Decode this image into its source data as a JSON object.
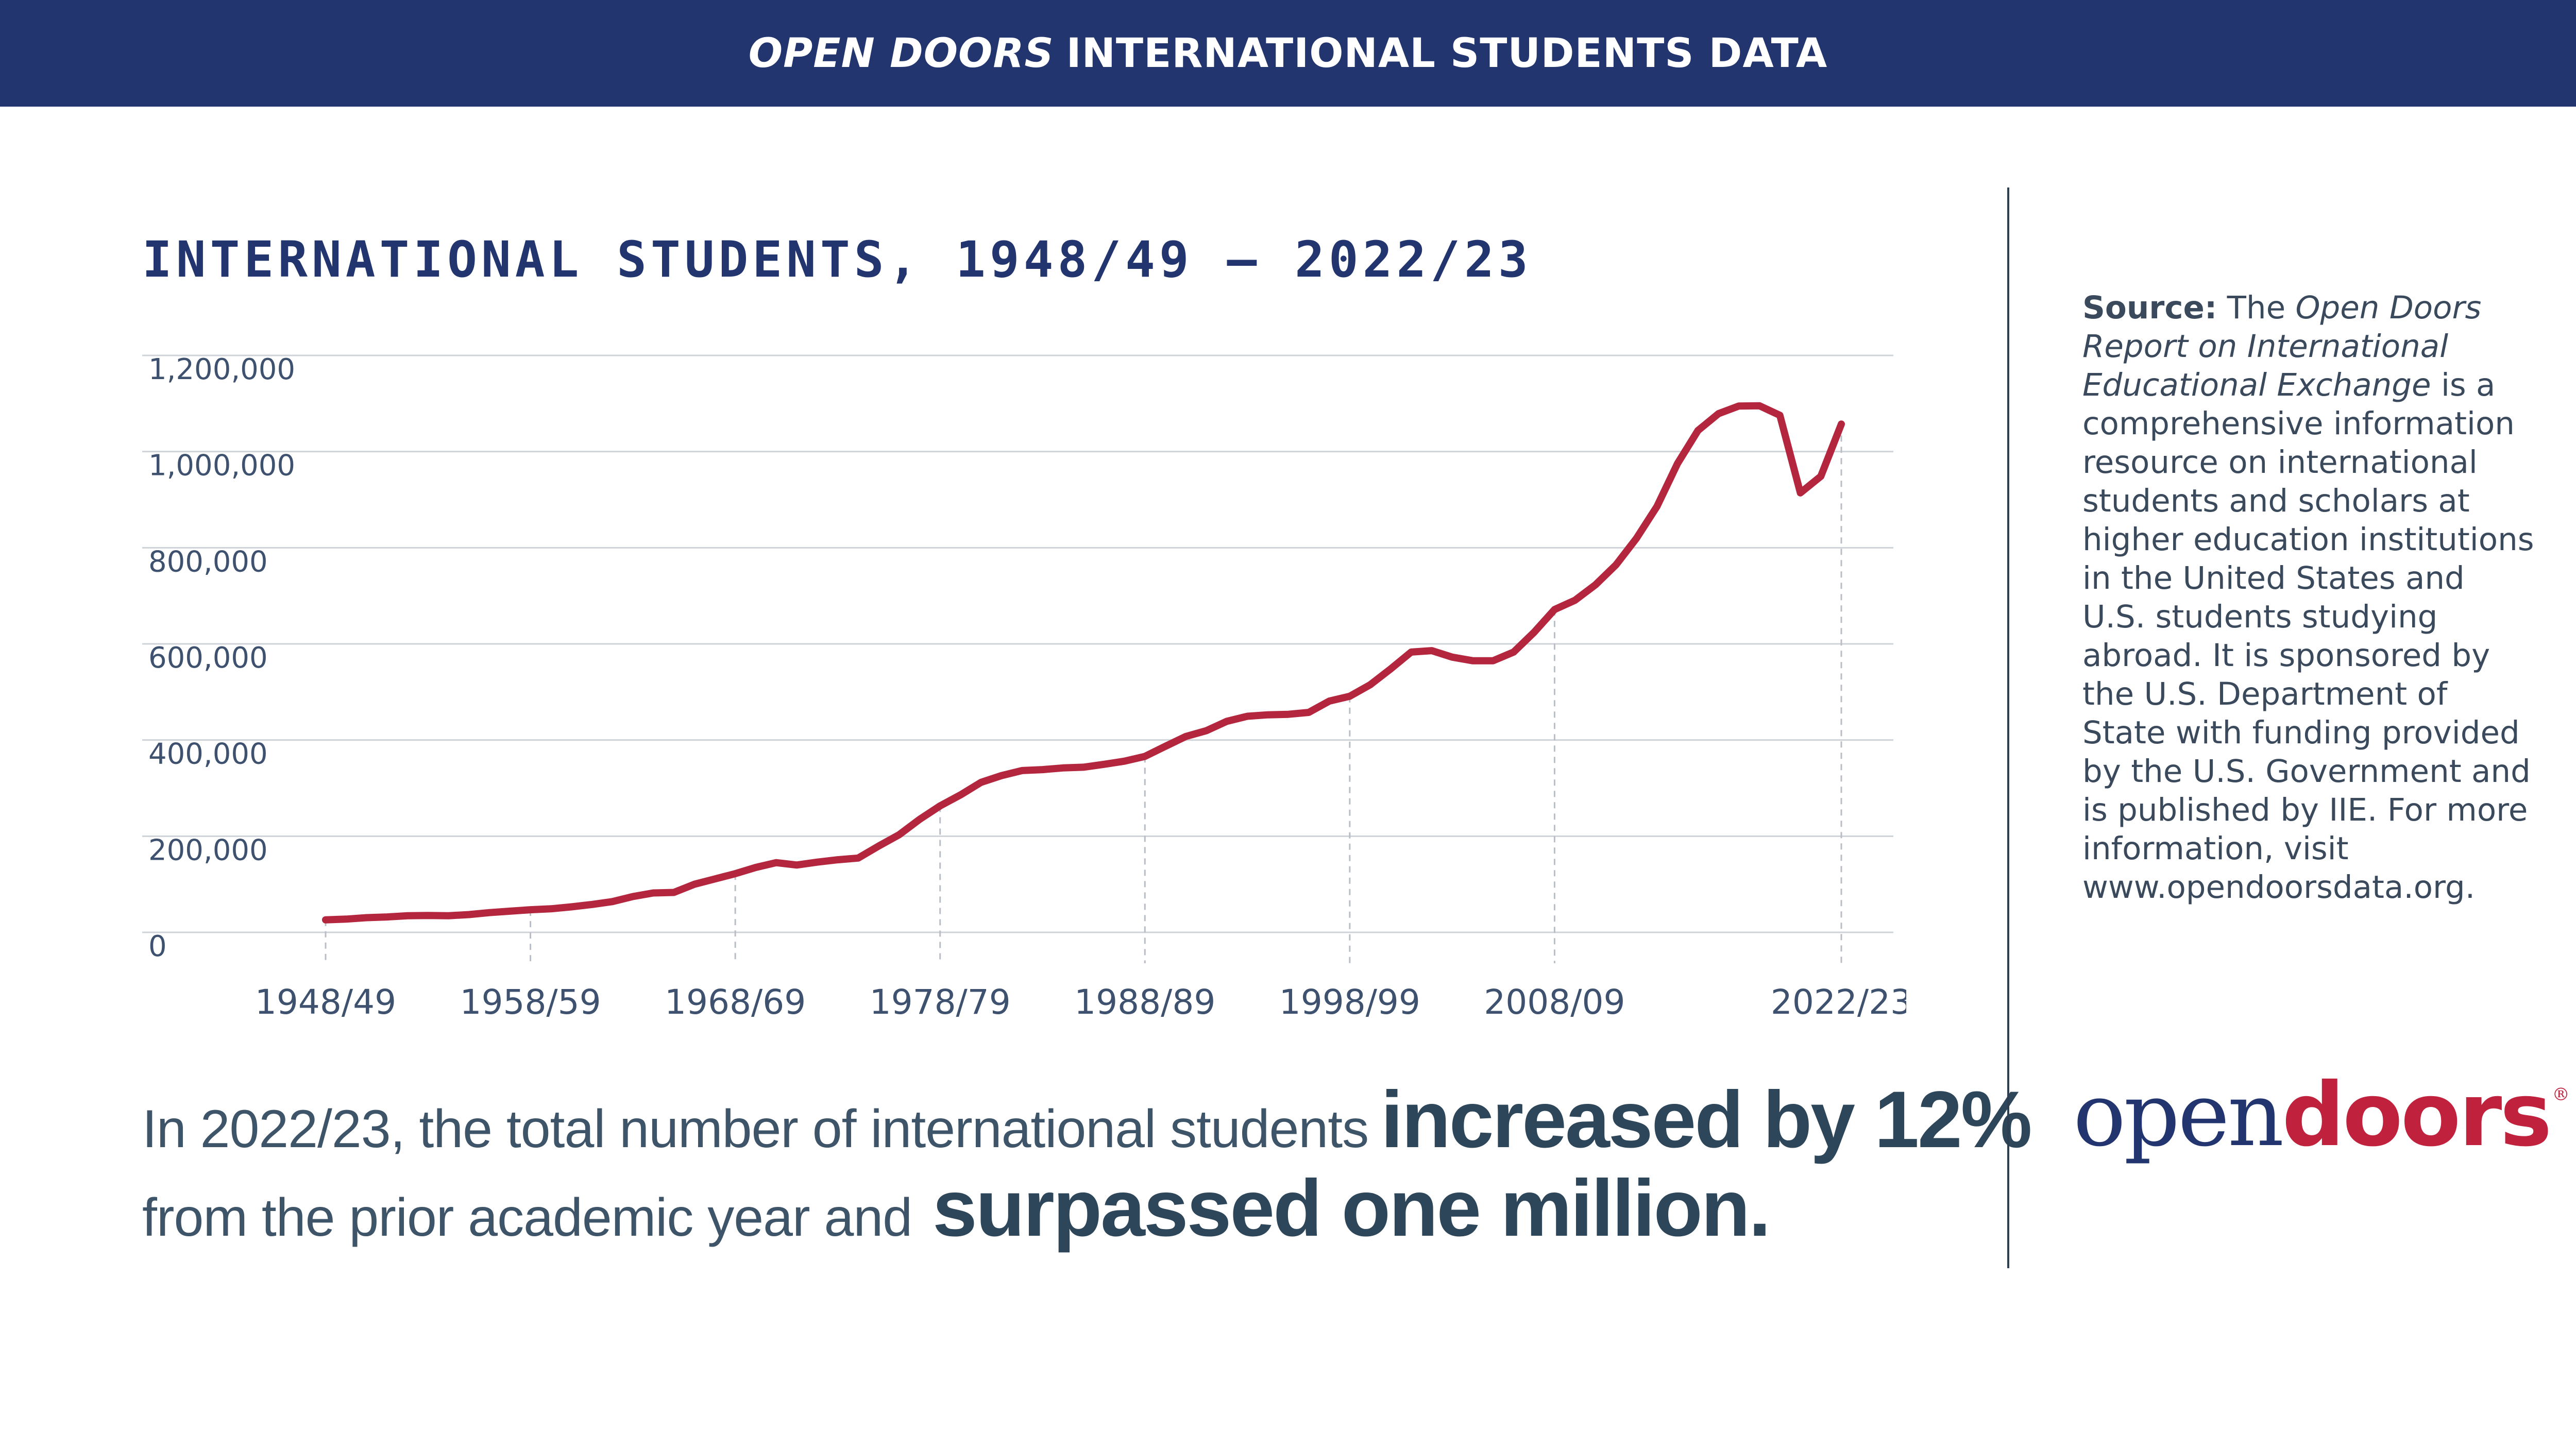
{
  "banner": {
    "emphasis": "OPEN DOORS",
    "rest": "INTERNATIONAL STUDENTS DATA"
  },
  "colors": {
    "navy": "#23356f",
    "line": "#b3263e",
    "text": "#2e4659"
  },
  "headline": {
    "line1_prefix": "In 2022/23, the total number of international students",
    "line1_bold": "increased by 12%",
    "line2_prefix": "from the prior academic year and",
    "line2_bold": "surpassed one million."
  },
  "source": {
    "label": "Source:",
    "pre": "The",
    "report_title": "Open Doors Report on International Educational Exchange",
    "body": "is a comprehensive information resource on international students and scholars at higher education institutions in the United States and U.S. students studying abroad. It is sponsored by the U.S. Department of State with funding provided by the U.S. Government and is published by IIE. For more information, visit www.opendoorsdata.org."
  },
  "logo": {
    "open": "open",
    "doors": "doors",
    "reg": "®"
  },
  "chart_data": {
    "type": "line",
    "title": "INTERNATIONAL STUDENTS, 1948/49 – 2022/23",
    "xlabel": "",
    "ylabel": "",
    "ylim": [
      0,
      1200000
    ],
    "yticks": [
      0,
      200000,
      400000,
      600000,
      800000,
      1000000,
      1200000
    ],
    "ytick_labels": [
      "0",
      "200,000",
      "400,000",
      "600,000",
      "800,000",
      "1,000,000",
      "1,200,000"
    ],
    "x_tick_labels": [
      "1948/49",
      "1958/59",
      "1968/69",
      "1978/79",
      "1988/89",
      "1998/99",
      "2008/09",
      "2022/23"
    ],
    "x_tick_years": [
      1948,
      1958,
      1968,
      1978,
      1988,
      1998,
      2008,
      2022
    ],
    "grid": true,
    "series": [
      {
        "color": "#b3263e",
        "x": [
          1948,
          1949,
          1950,
          1951,
          1952,
          1953,
          1954,
          1955,
          1956,
          1957,
          1958,
          1959,
          1960,
          1961,
          1962,
          1963,
          1964,
          1965,
          1966,
          1967,
          1968,
          1969,
          1970,
          1971,
          1972,
          1973,
          1974,
          1975,
          1976,
          1977,
          1978,
          1979,
          1980,
          1981,
          1982,
          1983,
          1984,
          1985,
          1986,
          1987,
          1988,
          1989,
          1990,
          1991,
          1992,
          1993,
          1994,
          1995,
          1996,
          1997,
          1998,
          1999,
          2000,
          2001,
          2002,
          2003,
          2004,
          2005,
          2006,
          2007,
          2008,
          2009,
          2010,
          2011,
          2012,
          2013,
          2014,
          2015,
          2016,
          2017,
          2018,
          2019,
          2020,
          2021,
          2022
        ],
        "values": [
          26000,
          27500,
          30500,
          32000,
          34500,
          35000,
          34500,
          37000,
          41000,
          44000,
          47000,
          49000,
          53000,
          58000,
          64000,
          74500,
          82000,
          83000,
          100000,
          111000,
          122000,
          135000,
          145000,
          140000,
          146000,
          151000,
          154500,
          179500,
          203000,
          235000,
          263000,
          286000,
          312000,
          326000,
          336500,
          338500,
          342000,
          343500,
          349500,
          356000,
          366000,
          387000,
          407500,
          419500,
          439000,
          449500,
          452500,
          453500,
          457500,
          481000,
          491000,
          515000,
          548000,
          583000,
          586000,
          572500,
          565000,
          565000,
          583000,
          624000,
          671500,
          690900,
          723000,
          764500,
          819600,
          886000,
          974900,
          1043800,
          1078800,
          1094800,
          1095300,
          1075500,
          914100,
          948500,
          1057200
        ]
      }
    ]
  }
}
